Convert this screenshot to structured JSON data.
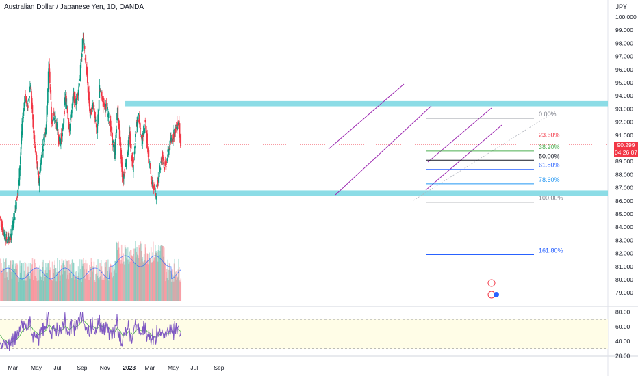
{
  "chart_title": "Australian Dollar / Japanese Yen, 1D, OANDA",
  "currency": "JPY",
  "last_price": "90.299",
  "countdown": "04:26:07",
  "colors": {
    "up": "#089981",
    "down": "#f23645",
    "zone": "#7fd8e3",
    "channel": "#9c27b0",
    "rsi": "#7e57c2",
    "ma": "#2962ff"
  },
  "chart_data": {
    "type": "candlestick",
    "title": "Australian Dollar / Japanese Yen, 1D, OANDA",
    "ylim": [
      78.5,
      100.5
    ],
    "y_ticks": [
      "100.000",
      "99.000",
      "98.000",
      "97.000",
      "96.000",
      "95.000",
      "94.000",
      "93.000",
      "92.000",
      "91.000",
      "90.000",
      "89.000",
      "88.000",
      "87.000",
      "86.000",
      "85.000",
      "84.000",
      "83.000",
      "82.000",
      "81.000",
      "80.000",
      "79.000"
    ],
    "x_ticks": [
      "Mar",
      "May",
      "Jul",
      "Sep",
      "Nov",
      "2023",
      "Mar",
      "May",
      "Jul",
      "Sep"
    ],
    "ohlc_path": [
      [
        "2022-01-28",
        84.8
      ],
      [
        "2022-02-10",
        83.2
      ],
      [
        "2022-02-24",
        83.0
      ],
      [
        "2022-03-08",
        84.8
      ],
      [
        "2022-03-20",
        87.5
      ],
      [
        "2022-03-28",
        91.5
      ],
      [
        "2022-04-05",
        94.0
      ],
      [
        "2022-04-12",
        93.0
      ],
      [
        "2022-04-20",
        95.0
      ],
      [
        "2022-04-28",
        91.0
      ],
      [
        "2022-05-12",
        87.5
      ],
      [
        "2022-05-20",
        89.5
      ],
      [
        "2022-06-01",
        92.0
      ],
      [
        "2022-06-08",
        96.5
      ],
      [
        "2022-06-16",
        92.0
      ],
      [
        "2022-06-24",
        92.5
      ],
      [
        "2022-07-06",
        90.5
      ],
      [
        "2022-07-14",
        91.0
      ],
      [
        "2022-07-22",
        94.0
      ],
      [
        "2022-08-02",
        91.5
      ],
      [
        "2022-08-12",
        94.0
      ],
      [
        "2022-08-20",
        93.5
      ],
      [
        "2022-08-30",
        95.5
      ],
      [
        "2022-09-07",
        98.5
      ],
      [
        "2022-09-16",
        96.0
      ],
      [
        "2022-09-26",
        92.5
      ],
      [
        "2022-10-05",
        93.5
      ],
      [
        "2022-10-14",
        91.0
      ],
      [
        "2022-10-21",
        94.5
      ],
      [
        "2022-10-31",
        93.5
      ],
      [
        "2022-11-10",
        93.0
      ],
      [
        "2022-11-20",
        91.5
      ],
      [
        "2022-11-30",
        89.5
      ],
      [
        "2022-12-08",
        93.0
      ],
      [
        "2022-12-16",
        90.0
      ],
      [
        "2022-12-22",
        87.5
      ],
      [
        "2022-12-31",
        89.0
      ],
      [
        "2023-01-09",
        91.0
      ],
      [
        "2023-01-18",
        88.5
      ],
      [
        "2023-01-26",
        91.5
      ],
      [
        "2023-02-02",
        92.5
      ],
      [
        "2023-02-10",
        90.5
      ],
      [
        "2023-02-20",
        92.0
      ],
      [
        "2023-02-28",
        89.5
      ],
      [
        "2023-03-09",
        87.5
      ],
      [
        "2023-03-20",
        86.5
      ],
      [
        "2023-03-28",
        88.0
      ],
      [
        "2023-04-06",
        89.5
      ],
      [
        "2023-04-14",
        88.5
      ],
      [
        "2023-04-24",
        90.0
      ],
      [
        "2023-05-04",
        91.0
      ],
      [
        "2023-05-12",
        91.5
      ],
      [
        "2023-05-20",
        92.0
      ],
      [
        "2023-05-26",
        90.3
      ]
    ],
    "horizontal_zones": [
      {
        "low": 93.2,
        "high": 93.6,
        "from": "2022-12-28"
      },
      {
        "low": 86.4,
        "high": 86.8,
        "from": "2022-01-28"
      }
    ],
    "fibonacci": [
      {
        "label": "0.00%",
        "value": 92.3,
        "color": "#787b86"
      },
      {
        "label": "23.60%",
        "value": 90.7,
        "color": "#f23645"
      },
      {
        "label": "38.20%",
        "value": 89.8,
        "color": "#4caf50"
      },
      {
        "label": "50.00%",
        "value": 89.1,
        "color": "#131722"
      },
      {
        "label": "61.80%",
        "value": 88.4,
        "color": "#2962ff"
      },
      {
        "label": "78.60%",
        "value": 87.3,
        "color": "#2196f3"
      },
      {
        "label": "100.00%",
        "value": 85.9,
        "color": "#787b86"
      },
      {
        "label": "161.80%",
        "value": 81.9,
        "color": "#2962ff"
      }
    ],
    "volume": "histogram, red/green bars with blue moving average",
    "rsi": {
      "y_ticks": [
        "80.00",
        "60.00",
        "40.00",
        "20.00"
      ],
      "ylim": [
        20,
        85
      ],
      "upper": 70,
      "middle": 50,
      "lower": 30,
      "last": 45
    }
  }
}
